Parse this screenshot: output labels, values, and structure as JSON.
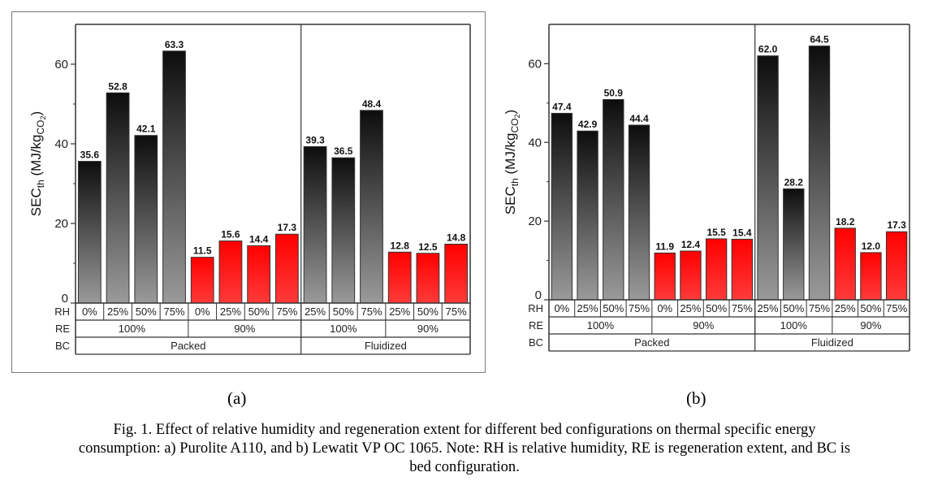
{
  "chart_data": [
    {
      "type": "bar",
      "panel": "(a)",
      "material": "Purolite A110",
      "ylabel": "SEC_th (MJ/kg_CO2)",
      "ylabel_main": "SEC",
      "ylabel_sub": "th",
      "ylabel_unit": "(MJ/kg",
      "ylabel_unit_sub": "CO",
      "ylabel_unit_subsub": "2",
      "ylabel_close": ")",
      "ylim": [
        0,
        70
      ],
      "yticks": [
        0,
        20,
        40,
        60
      ],
      "yminor": [
        10,
        30,
        50
      ],
      "grid": false,
      "row_labels": [
        "RH",
        "RE",
        "BC"
      ],
      "categories": [
        "0%",
        "25%",
        "50%",
        "75%",
        "0%",
        "25%",
        "50%",
        "75%",
        "25%",
        "50%",
        "75%",
        "25%",
        "50%",
        "75%"
      ],
      "values": [
        35.6,
        52.8,
        42.1,
        63.3,
        11.5,
        15.6,
        14.4,
        17.3,
        39.3,
        36.5,
        48.4,
        12.8,
        12.5,
        14.8
      ],
      "value_labels": [
        "35.6",
        "52.8",
        "42.1",
        "63.3",
        "11.5",
        "15.6",
        "14.4",
        "17.3",
        "39.3",
        "36.5",
        "48.4",
        "12.8",
        "12.5",
        "14.8"
      ],
      "series_color": [
        "gray",
        "gray",
        "gray",
        "gray",
        "red",
        "red",
        "red",
        "red",
        "gray",
        "gray",
        "gray",
        "red",
        "red",
        "red"
      ],
      "re_groups": [
        {
          "label": "100%",
          "count": 4
        },
        {
          "label": "90%",
          "count": 4
        },
        {
          "label": "100%",
          "count": 3
        },
        {
          "label": "90%",
          "count": 3
        }
      ],
      "bc_groups": [
        {
          "label": "Packed",
          "count": 8
        },
        {
          "label": "Fluidized",
          "count": 6
        }
      ]
    },
    {
      "type": "bar",
      "panel": "(b)",
      "material": "Lewatit VP OC 1065",
      "ylabel": "SEC_th (MJ/kg_CO2)",
      "ylabel_main": "SEC",
      "ylabel_sub": "th",
      "ylabel_unit": "(MJ/kg",
      "ylabel_unit_sub": "CO",
      "ylabel_unit_subsub": "2",
      "ylabel_close": ")",
      "ylim": [
        0,
        70
      ],
      "yticks": [
        0,
        20,
        40,
        60
      ],
      "yminor": [
        10,
        30,
        50
      ],
      "grid": false,
      "row_labels": [
        "RH",
        "RE",
        "BC"
      ],
      "categories": [
        "0%",
        "25%",
        "50%",
        "75%",
        "0%",
        "25%",
        "50%",
        "75%",
        "25%",
        "50%",
        "75%",
        "25%",
        "50%",
        "75%"
      ],
      "values": [
        47.4,
        42.9,
        50.9,
        44.4,
        11.9,
        12.4,
        15.5,
        15.4,
        62.0,
        28.2,
        64.5,
        18.2,
        12.0,
        17.3
      ],
      "value_labels": [
        "47.4",
        "42.9",
        "50.9",
        "44.4",
        "11.9",
        "12.4",
        "15.5",
        "15.4",
        "62.0",
        "28.2",
        "64.5",
        "18.2",
        "12.0",
        "17.3"
      ],
      "series_color": [
        "gray",
        "gray",
        "gray",
        "gray",
        "red",
        "red",
        "red",
        "red",
        "gray",
        "gray",
        "gray",
        "red",
        "red",
        "red"
      ],
      "re_groups": [
        {
          "label": "100%",
          "count": 4
        },
        {
          "label": "90%",
          "count": 4
        },
        {
          "label": "100%",
          "count": 3
        },
        {
          "label": "90%",
          "count": 3
        }
      ],
      "bc_groups": [
        {
          "label": "Packed",
          "count": 8
        },
        {
          "label": "Fluidized",
          "count": 6
        }
      ]
    }
  ],
  "colors": {
    "gray_top": "#0d0d0d",
    "gray_bottom": "#9a9a9a",
    "red_top": "#ff0000",
    "red_bottom": "#ff3a3a",
    "axis": "#333333"
  },
  "labels": {
    "panel_a": "(a)",
    "panel_b": "(b)"
  },
  "caption": {
    "line1": "Fig. 1. Effect of relative humidity and regeneration extent for different bed configurations on thermal specific energy",
    "line2": "consumption: a) Purolite A110, and b) Lewatit VP OC 1065. Note: RH is relative humidity, RE is regeneration extent, and BC is",
    "line3": "bed configuration."
  }
}
